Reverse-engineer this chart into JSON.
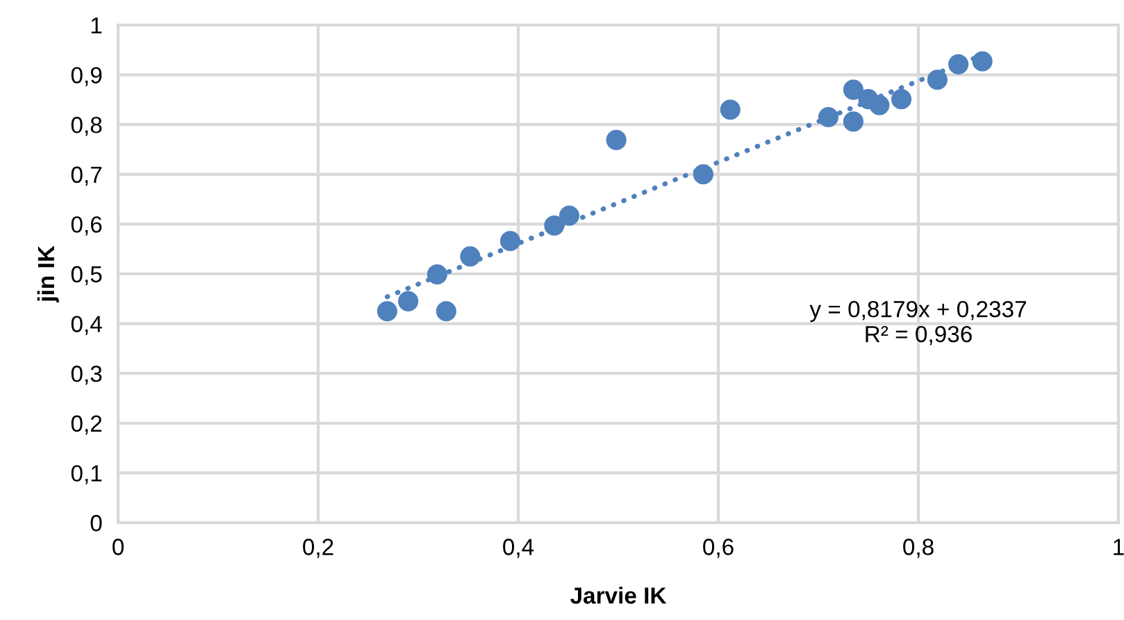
{
  "chart_data": {
    "type": "scatter",
    "xlabel": "Jarvie IK",
    "ylabel": "jin IK",
    "xlim": [
      0,
      1
    ],
    "ylim": [
      0,
      1
    ],
    "xticks": [
      0,
      {
        "value": 0.2,
        "label": "0,2"
      },
      {
        "value": 0.4,
        "label": "0,4"
      },
      {
        "value": 0.6,
        "label": "0,6"
      },
      {
        "value": 0.8,
        "label": "0,8"
      },
      1
    ],
    "yticks": [
      0,
      {
        "value": 0.1,
        "label": "0,1"
      },
      {
        "value": 0.2,
        "label": "0,2"
      },
      {
        "value": 0.3,
        "label": "0,3"
      },
      {
        "value": 0.4,
        "label": "0,4"
      },
      {
        "value": 0.5,
        "label": "0,5"
      },
      {
        "value": 0.6,
        "label": "0,6"
      },
      {
        "value": 0.7,
        "label": "0,7"
      },
      {
        "value": 0.8,
        "label": "0,8"
      },
      {
        "value": 0.9,
        "label": "0,9"
      },
      1
    ],
    "grid": true,
    "legend": false,
    "series": [
      {
        "color": "#4f81bd",
        "marker": "circle",
        "x": [
          0.269,
          0.29,
          0.328,
          0.319,
          0.352,
          0.392,
          0.436,
          0.451,
          0.498,
          0.585,
          0.612,
          0.71,
          0.735,
          0.735,
          0.75,
          0.761,
          0.783,
          0.819,
          0.84,
          0.864
        ],
        "values": [
          0.425,
          0.445,
          0.425,
          0.499,
          0.535,
          0.566,
          0.597,
          0.617,
          0.769,
          0.7,
          0.83,
          0.815,
          0.87,
          0.806,
          0.851,
          0.839,
          0.851,
          0.89,
          0.921,
          0.927
        ]
      },
      {
        "type": "line",
        "color": "#4f81bd",
        "line_style": "dotted",
        "marker": "none",
        "x": [
          0.269,
          0.864
        ],
        "values": [
          0.454,
          0.94
        ]
      }
    ],
    "annotations": [
      "y = 0,8179x + 0,2337\nR² = 0,936"
    ]
  }
}
